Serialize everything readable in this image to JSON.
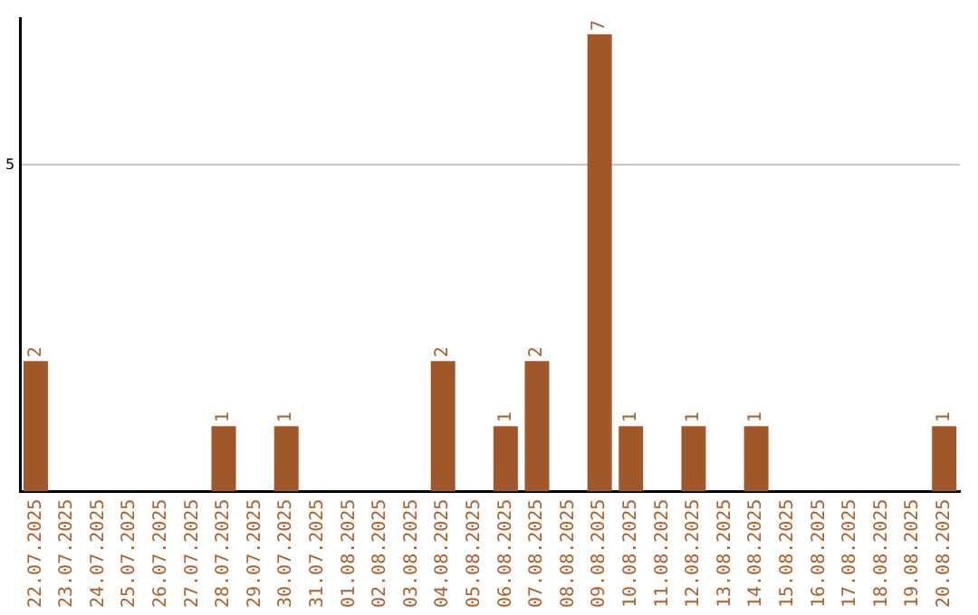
{
  "chart_data": {
    "type": "bar",
    "categories": [
      "22.07.2025",
      "23.07.2025",
      "24.07.2025",
      "25.07.2025",
      "26.07.2025",
      "27.07.2025",
      "28.07.2025",
      "29.07.2025",
      "30.07.2025",
      "31.07.2025",
      "01.08.2025",
      "02.08.2025",
      "03.08.2025",
      "04.08.2025",
      "05.08.2025",
      "06.08.2025",
      "07.08.2025",
      "08.08.2025",
      "09.08.2025",
      "10.08.2025",
      "11.08.2025",
      "12.08.2025",
      "13.08.2025",
      "14.08.2025",
      "15.08.2025",
      "16.08.2025",
      "17.08.2025",
      "18.08.2025",
      "19.08.2025",
      "20.08.2025"
    ],
    "values": [
      2,
      0,
      0,
      0,
      0,
      0,
      1,
      0,
      1,
      0,
      0,
      0,
      0,
      2,
      0,
      1,
      2,
      0,
      7,
      1,
      0,
      1,
      0,
      1,
      0,
      0,
      0,
      0,
      0,
      1
    ],
    "value_labels": [
      "2",
      null,
      null,
      null,
      null,
      null,
      "1",
      null,
      "1",
      null,
      null,
      null,
      null,
      "2",
      null,
      "1",
      "2",
      null,
      "7",
      "1",
      null,
      "1",
      null,
      "1",
      null,
      null,
      null,
      null,
      null,
      "1"
    ],
    "color": "#a0572a",
    "ylim": [
      0,
      7.25
    ],
    "yticks": [
      5
    ],
    "grid": "y",
    "legend": false
  }
}
